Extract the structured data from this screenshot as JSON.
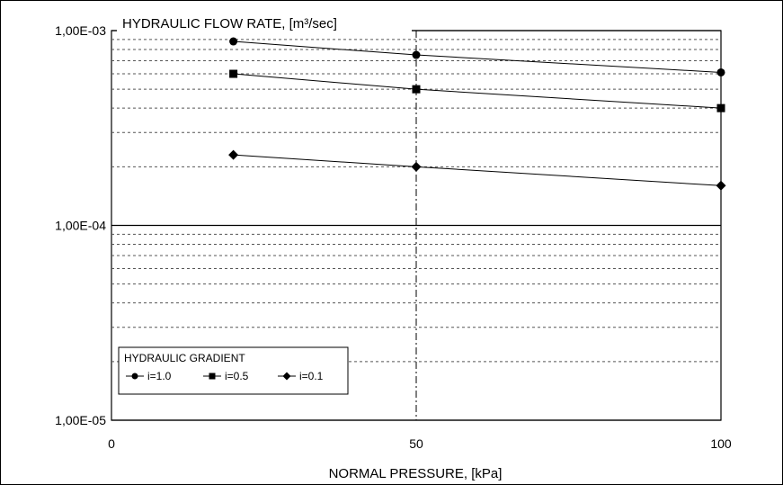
{
  "chart_data": {
    "type": "line",
    "title": "HYDRAULIC FLOW RATE, [m³/sec]",
    "xlabel": "NORMAL PRESSURE, [kPa]",
    "ylabel": "",
    "xlim": [
      0,
      100
    ],
    "ylim": [
      1e-05,
      0.001
    ],
    "yscale": "log",
    "x_ticks": [
      0,
      50,
      100
    ],
    "x_tick_labels": [
      "0",
      "50",
      "100"
    ],
    "y_ticks": [
      1e-05,
      0.0001,
      0.001
    ],
    "y_tick_labels": [
      "1,00E-05",
      "1,00E-04",
      "1,00E-03"
    ],
    "grid": true,
    "legend_title": "HYDRAULIC GRADIENT",
    "legend_position": "bottom-left",
    "series": [
      {
        "name": "i=1.0",
        "marker": "circle",
        "x": [
          20,
          50,
          100
        ],
        "y": [
          0.00088,
          0.00075,
          0.00061
        ]
      },
      {
        "name": "i=0.5",
        "marker": "square",
        "x": [
          20,
          50,
          100
        ],
        "y": [
          0.0006,
          0.0005,
          0.0004
        ]
      },
      {
        "name": "i=0.1",
        "marker": "diamond",
        "x": [
          20,
          50,
          100
        ],
        "y": [
          0.00023,
          0.0002,
          0.00016
        ]
      }
    ]
  }
}
